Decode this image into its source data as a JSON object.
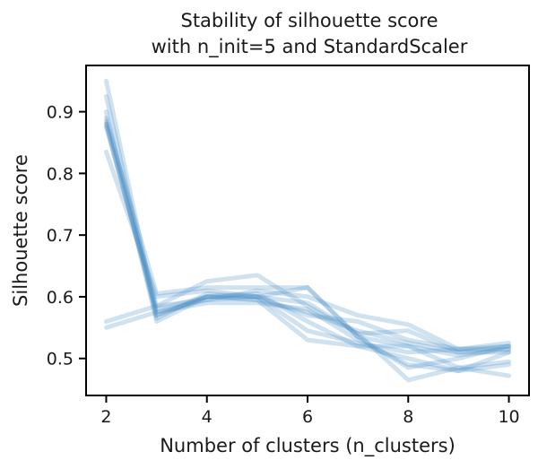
{
  "chart_data": {
    "type": "line",
    "title_lines": [
      "Stability of silhouette score",
      "with n_init=5 and StandardScaler"
    ],
    "xlabel": "Number of clusters (n_clusters)",
    "ylabel": "Silhouette score",
    "x": [
      2,
      3,
      4,
      5,
      6,
      7,
      8,
      9,
      10
    ],
    "xticks": [
      2,
      4,
      6,
      8,
      10
    ],
    "yticks": [
      0.5,
      0.6,
      0.7,
      0.8,
      0.9
    ],
    "xlim": [
      1.6,
      10.4
    ],
    "ylim": [
      0.44,
      0.975
    ],
    "line_color": "#4a90c4",
    "line_opacity": 0.26,
    "series": [
      {
        "values": [
          0.95,
          0.57,
          0.6,
          0.605,
          0.56,
          0.52,
          0.52,
          0.485,
          0.472
        ]
      },
      {
        "values": [
          0.925,
          0.565,
          0.605,
          0.6,
          0.545,
          0.525,
          0.51,
          0.515,
          0.515
        ]
      },
      {
        "values": [
          0.9,
          0.56,
          0.6,
          0.595,
          0.53,
          0.52,
          0.5,
          0.48,
          0.51
        ]
      },
      {
        "values": [
          0.89,
          0.585,
          0.595,
          0.6,
          0.59,
          0.54,
          0.465,
          0.485,
          0.495
        ]
      },
      {
        "values": [
          0.88,
          0.57,
          0.6,
          0.6,
          0.615,
          0.535,
          0.485,
          0.5,
          0.52
        ]
      },
      {
        "values": [
          0.885,
          0.605,
          0.615,
          0.615,
          0.615,
          0.535,
          0.52,
          0.505,
          0.515
        ]
      },
      {
        "values": [
          0.875,
          0.58,
          0.6,
          0.595,
          0.575,
          0.545,
          0.525,
          0.51,
          0.52
        ]
      },
      {
        "values": [
          0.835,
          0.6,
          0.61,
          0.6,
          0.57,
          0.56,
          0.53,
          0.515,
          0.52
        ]
      },
      {
        "values": [
          0.56,
          0.585,
          0.625,
          0.635,
          0.585,
          0.54,
          0.545,
          0.51,
          0.51
        ]
      },
      {
        "values": [
          0.55,
          0.575,
          0.595,
          0.61,
          0.6,
          0.57,
          0.555,
          0.515,
          0.525
        ]
      },
      {
        "values": [
          0.88,
          0.575,
          0.59,
          0.59,
          0.58,
          0.53,
          0.49,
          0.48,
          0.49
        ]
      }
    ]
  }
}
